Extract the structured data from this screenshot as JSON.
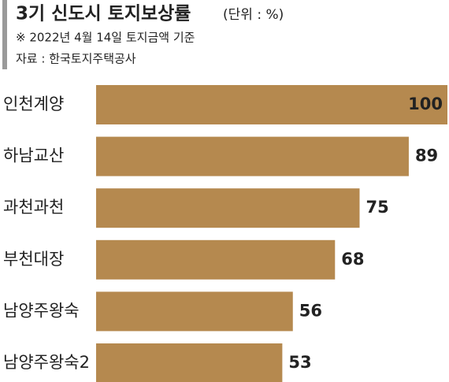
{
  "chart_data": {
    "type": "bar",
    "orientation": "horizontal",
    "title": "3기 신도시 토지보상률",
    "unit": "(단위 : %)",
    "subtitle": "※ 2022년 4월 14일 토지금액 기준",
    "source": "자료 : 한국토지주택공사",
    "categories": [
      "인천계양",
      "하남교산",
      "과천과천",
      "부천대장",
      "남양주왕숙",
      "남양주왕숙2"
    ],
    "values": [
      100,
      89,
      75,
      68,
      56,
      53
    ],
    "color": "#b5894f"
  }
}
